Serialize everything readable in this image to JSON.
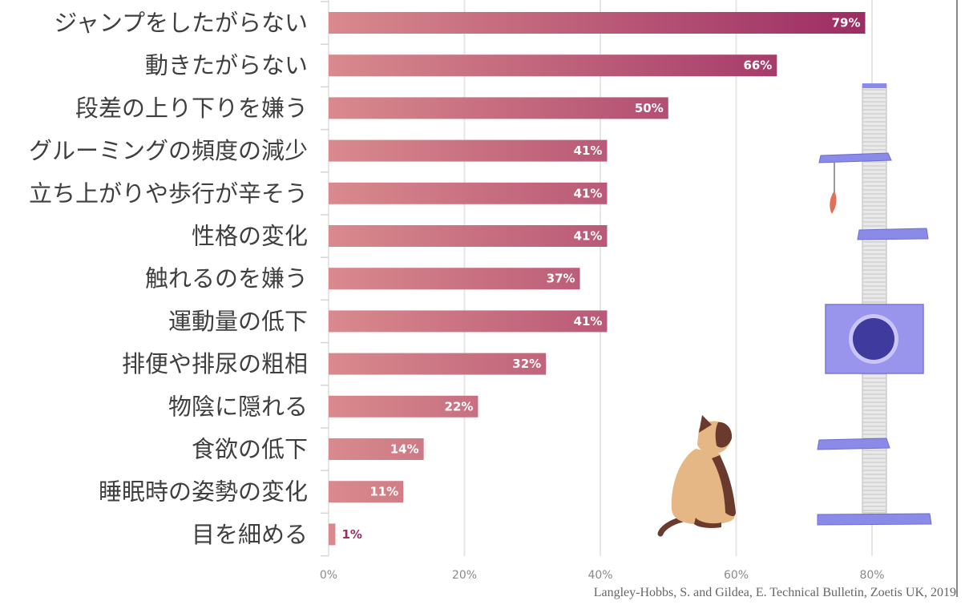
{
  "chart_data": {
    "type": "bar",
    "orientation": "horizontal",
    "categories": [
      "ジャンプをしたがらない",
      "動きたがらない",
      "段差の上り下りを嫌う",
      "グルーミングの頻度の減少",
      "立ち上がりや歩行が辛そう",
      "性格の変化",
      "触れるのを嫌う",
      "運動量の低下",
      "排便や排尿の粗相",
      "物陰に隠れる",
      "食欲の低下",
      "睡眠時の姿勢の変化",
      "目を細める"
    ],
    "values": [
      79,
      66,
      50,
      41,
      41,
      41,
      37,
      41,
      32,
      22,
      14,
      11,
      1
    ],
    "value_labels": [
      "79%",
      "66%",
      "50%",
      "41%",
      "41%",
      "41%",
      "37%",
      "41%",
      "32%",
      "22%",
      "14%",
      "11%",
      "1%"
    ],
    "xlim": [
      0,
      85
    ],
    "ticks": [
      0,
      20,
      40,
      60,
      80
    ],
    "tick_labels": [
      "0%",
      "20%",
      "40%",
      "60%",
      "80%"
    ],
    "grid": true,
    "colors": {
      "bar_start": "#d98a8d",
      "bar_end": "#9b2c63",
      "grid": "#e6e6e6",
      "scratcher_purple": "#8a8ae8",
      "cat_body": "#e5b784",
      "cat_points": "#6b3a2e"
    }
  },
  "source": "Langley-Hobbs, S. and Gildea, E. Technical Bulletin, Zoetis UK, 2019"
}
